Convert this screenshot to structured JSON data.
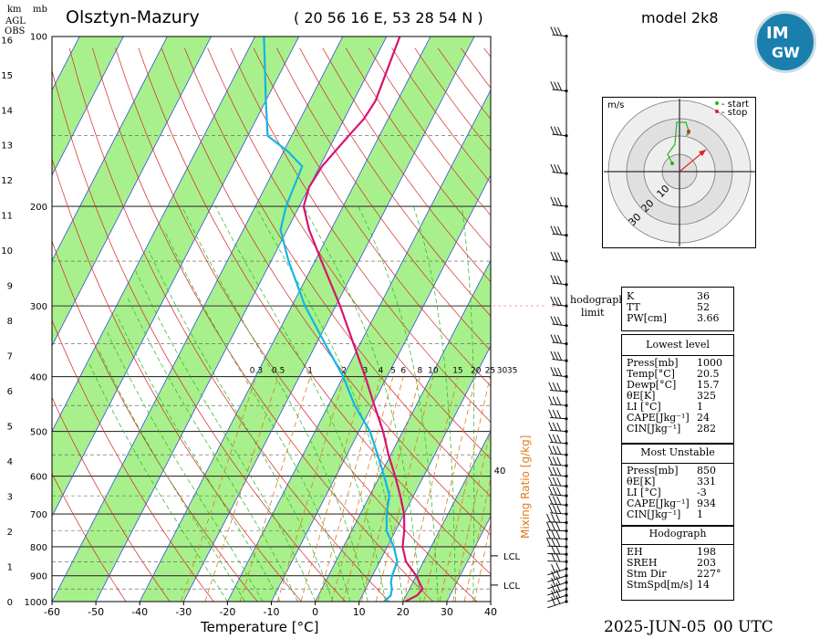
{
  "header": {
    "station": "Olsztyn-Mazury",
    "coords": "( 20 56 16  E, 53 28 54  N )",
    "model": "model 2k8",
    "km_label": "km",
    "agl_label": "AGL",
    "obs_label": "OBS",
    "mb_label": "mb",
    "date": "2025-JUN-05",
    "time": "00 UTC"
  },
  "logo": {
    "top": "IM",
    "bottom": "GW"
  },
  "hodograph": {
    "unit": "m/s",
    "start_label": "- start",
    "stop_label": "- stop",
    "ring_labels": [
      "10",
      "20",
      "30"
    ],
    "limit_label_1": "hodograph",
    "limit_label_2": "limit"
  },
  "indices": {
    "k_label": "K",
    "k_val": "36",
    "tt_label": "TT",
    "tt_val": "52",
    "pw_label": "PW[cm]",
    "pw_val": "3.66"
  },
  "lowest": {
    "title": "Lowest level",
    "rows": [
      {
        "k": "Press[mb]",
        "v": "1000"
      },
      {
        "k": "Temp[°C]",
        "v": "20.5"
      },
      {
        "k": "Dewp[°C]",
        "v": "15.7"
      },
      {
        "k": "θE[K]",
        "v": "325"
      },
      {
        "k": "LI [°C]",
        "v": "1"
      },
      {
        "k": "CAPE[Jkg⁻¹]",
        "v": "24"
      },
      {
        "k": "CIN[Jkg⁻¹]",
        "v": "282"
      }
    ]
  },
  "unstable": {
    "title": "Most Unstable",
    "rows": [
      {
        "k": "Press[mb]",
        "v": "850"
      },
      {
        "k": "θE[K]",
        "v": "331"
      },
      {
        "k": "LI [°C]",
        "v": "-3"
      },
      {
        "k": "CAPE[Jkg⁻¹]",
        "v": "934"
      },
      {
        "k": "CIN[Jkg⁻¹]",
        "v": "1"
      }
    ]
  },
  "hodo_table": {
    "title": "Hodograph",
    "rows": [
      {
        "k": "EH",
        "v": "198"
      },
      {
        "k": "SREH",
        "v": "203"
      },
      {
        "k": "Stm Dir",
        "v": "227°"
      },
      {
        "k": "StmSpd[m/s]",
        "v": "14"
      }
    ]
  },
  "colors": {
    "temperature": "#d8136f",
    "dewpoint": "#12b5e6",
    "band": "#a8f08c",
    "isotherm": "#2f4fd8",
    "dry_adiabat": "#d42424",
    "mixing": "#e07a1a",
    "moist": "#22b522"
  },
  "chart_data": {
    "type": "line",
    "title": "Olsztyn-Mazury",
    "xlabel": "Temperature [°C]",
    "ylabel": "mb",
    "y2label": "km",
    "xlim": [
      -60,
      40
    ],
    "x_ticks": [
      "-60",
      "-50",
      "-40",
      "-30",
      "-20",
      "-10",
      "0",
      "10",
      "20",
      "30",
      "40"
    ],
    "p_ticks": [
      "100",
      "200",
      "300",
      "400",
      "500",
      "600",
      "700",
      "800",
      "900",
      "1000"
    ],
    "km_ticks": [
      "0",
      "1",
      "2",
      "3",
      "4",
      "5",
      "6",
      "7",
      "8",
      "9",
      "10",
      "11",
      "12",
      "13",
      "14",
      "15",
      "16"
    ],
    "mixing_ratio_label": "Mixing Ratio [g/kg]",
    "mixing_ratio_ticks": [
      "0.3",
      "0.5",
      "1",
      "2",
      "3",
      "4",
      "5",
      "6",
      "8",
      "10",
      "15",
      "20",
      "25",
      "30",
      "35"
    ],
    "mixing_ratio_extra": "40",
    "lcl_label": "LCL",
    "series": [
      {
        "name": "Temperature",
        "points": [
          [
            1000,
            20.5
          ],
          [
            975,
            22.5
          ],
          [
            950,
            23.0
          ],
          [
            925,
            21.5
          ],
          [
            900,
            20.0
          ],
          [
            850,
            16.0
          ],
          [
            800,
            13.5
          ],
          [
            750,
            12.0
          ],
          [
            700,
            10.0
          ],
          [
            650,
            7.0
          ],
          [
            600,
            3.5
          ],
          [
            550,
            -0.5
          ],
          [
            500,
            -4.5
          ],
          [
            450,
            -9.5
          ],
          [
            400,
            -15.0
          ],
          [
            350,
            -21.5
          ],
          [
            300,
            -29.0
          ],
          [
            250,
            -38.5
          ],
          [
            220,
            -45.0
          ],
          [
            200,
            -49.0
          ],
          [
            185,
            -50.0
          ],
          [
            170,
            -49.5
          ],
          [
            150,
            -47.0
          ],
          [
            140,
            -45.5
          ],
          [
            130,
            -45.0
          ],
          [
            100,
            -47.0
          ]
        ]
      },
      {
        "name": "Dewpoint",
        "points": [
          [
            1000,
            15.7
          ],
          [
            975,
            16.5
          ],
          [
            950,
            16.0
          ],
          [
            925,
            15.0
          ],
          [
            900,
            14.5
          ],
          [
            850,
            14.0
          ],
          [
            800,
            11.5
          ],
          [
            750,
            8.0
          ],
          [
            700,
            6.0
          ],
          [
            650,
            4.5
          ],
          [
            600,
            1.0
          ],
          [
            550,
            -3.0
          ],
          [
            500,
            -7.5
          ],
          [
            450,
            -14.0
          ],
          [
            400,
            -20.0
          ],
          [
            350,
            -28.0
          ],
          [
            300,
            -37.0
          ],
          [
            250,
            -46.0
          ],
          [
            220,
            -51.5
          ],
          [
            200,
            -53.0
          ],
          [
            170,
            -54.0
          ],
          [
            160,
            -59.0
          ],
          [
            150,
            -65.5
          ],
          [
            130,
            -70.0
          ],
          [
            100,
            -78.0
          ]
        ]
      }
    ]
  }
}
